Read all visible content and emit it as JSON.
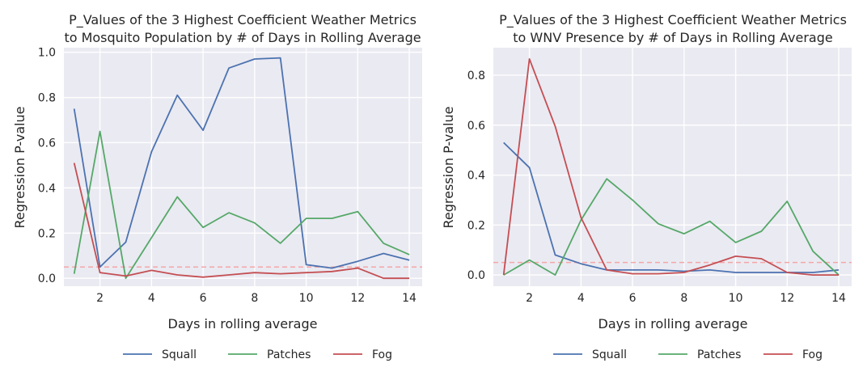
{
  "colors": {
    "Squall": "#4c72b0",
    "Patches": "#55a868",
    "Fog": "#c44e52",
    "threshold": "#f4a6a8",
    "plot_bg": "#eaeaf2",
    "grid": "#ffffff"
  },
  "chart_data": [
    {
      "type": "line",
      "title_line1": "P_Values of the 3 Highest Coefficient Weather Metrics",
      "title_line2": "to Mosquito Population by # of Days in Rolling Average",
      "xlabel": "Days in rolling average",
      "ylabel": "Regression P-value",
      "xlim": [
        0.6,
        14.5
      ],
      "ylim": [
        -0.035,
        1.02
      ],
      "xticks": [
        2,
        4,
        6,
        8,
        10,
        12,
        14
      ],
      "yticks": [
        0.0,
        0.2,
        0.4,
        0.6,
        0.8,
        1.0
      ],
      "ytick_labels": [
        "0.0",
        "0.2",
        "0.4",
        "0.6",
        "0.8",
        "1.0"
      ],
      "threshold": 0.05,
      "x": [
        1,
        2,
        3,
        4,
        5,
        6,
        7,
        8,
        9,
        10,
        11,
        12,
        13,
        14
      ],
      "series": [
        {
          "name": "Squall",
          "values": [
            0.75,
            0.05,
            0.16,
            0.56,
            0.81,
            0.655,
            0.93,
            0.97,
            0.975,
            0.06,
            0.045,
            0.075,
            0.11,
            0.08
          ]
        },
        {
          "name": "Patches",
          "values": [
            0.02,
            0.65,
            0.0,
            0.18,
            0.36,
            0.225,
            0.29,
            0.245,
            0.155,
            0.265,
            0.265,
            0.295,
            0.155,
            0.105
          ]
        },
        {
          "name": "Fog",
          "values": [
            0.51,
            0.025,
            0.01,
            0.035,
            0.015,
            0.005,
            0.015,
            0.025,
            0.02,
            0.025,
            0.03,
            0.045,
            0.0,
            0.0
          ]
        }
      ],
      "legend": [
        "Squall",
        "Patches",
        "Fog"
      ],
      "legend_position": "bottom-center",
      "grid": true
    },
    {
      "type": "line",
      "title_line1": "P_Values of the 3 Highest Coefficient Weather Metrics",
      "title_line2": "to WNV Presence by # of Days in Rolling Average",
      "xlabel": "Days in rolling average",
      "ylabel": "Regression P-value",
      "xlim": [
        0.6,
        14.5
      ],
      "ylim": [
        -0.045,
        0.91
      ],
      "xticks": [
        2,
        4,
        6,
        8,
        10,
        12,
        14
      ],
      "yticks": [
        0.0,
        0.2,
        0.4,
        0.6,
        0.8
      ],
      "ytick_labels": [
        "0.0",
        "0.2",
        "0.4",
        "0.6",
        "0.8"
      ],
      "threshold": 0.05,
      "x": [
        1,
        2,
        3,
        4,
        5,
        6,
        7,
        8,
        9,
        10,
        11,
        12,
        13,
        14
      ],
      "series": [
        {
          "name": "Squall",
          "values": [
            0.53,
            0.43,
            0.08,
            0.045,
            0.02,
            0.02,
            0.02,
            0.015,
            0.02,
            0.01,
            0.01,
            0.01,
            0.01,
            0.02
          ]
        },
        {
          "name": "Patches",
          "values": [
            0.0,
            0.06,
            0.0,
            0.22,
            0.385,
            0.3,
            0.205,
            0.165,
            0.215,
            0.13,
            0.175,
            0.295,
            0.095,
            0.0
          ]
        },
        {
          "name": "Fog",
          "values": [
            0.0,
            0.865,
            0.595,
            0.23,
            0.02,
            0.005,
            0.005,
            0.01,
            0.04,
            0.075,
            0.065,
            0.01,
            0.0,
            0.0
          ]
        }
      ],
      "legend": [
        "Squall",
        "Patches",
        "Fog"
      ],
      "legend_position": "bottom-center",
      "grid": true
    }
  ]
}
